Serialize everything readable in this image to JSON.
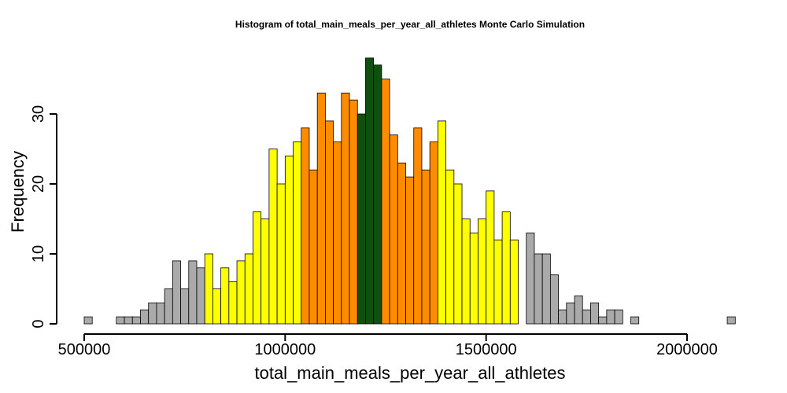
{
  "chart_data": {
    "type": "bar",
    "title": "Histogram of  total_main_meals_per_year_all_athletes  Monte Carlo Simulation",
    "xlabel": "total_main_meals_per_year_all_athletes",
    "ylabel": "Frequency",
    "bin_start": 500000,
    "bin_width": 20000,
    "xlim": [
      500000,
      2120000
    ],
    "ylim": [
      0,
      38
    ],
    "x_ticks": [
      500000,
      1000000,
      1500000,
      2000000
    ],
    "x_tick_labels": [
      "500000",
      "1000000",
      "1500000",
      "2000000"
    ],
    "y_ticks": [
      0,
      10,
      20,
      30
    ],
    "y_tick_labels": [
      "0",
      "10",
      "20",
      "30"
    ],
    "grid": false,
    "legend": "none",
    "series": [
      {
        "values": [
          1,
          0,
          0,
          0,
          1,
          1,
          1,
          2,
          3,
          3,
          5,
          9,
          5,
          9,
          8,
          10,
          5,
          8,
          6,
          9,
          10,
          16,
          15,
          25,
          20,
          24,
          26,
          28,
          22,
          33,
          29,
          26,
          33,
          32,
          30,
          38,
          37,
          35,
          27,
          23,
          21,
          28,
          22,
          26,
          29,
          22,
          20,
          15,
          13,
          15,
          19,
          12,
          16,
          12,
          0,
          13,
          10,
          10,
          7,
          2,
          3,
          4,
          2,
          3,
          1,
          2,
          2,
          0,
          1,
          0,
          0,
          0,
          0,
          0,
          0,
          0,
          0,
          0,
          0,
          0,
          1
        ]
      }
    ],
    "bar_colors": [
      "#aaaaaa",
      "#aaaaaa",
      "#aaaaaa",
      "#aaaaaa",
      "#aaaaaa",
      "#aaaaaa",
      "#aaaaaa",
      "#aaaaaa",
      "#aaaaaa",
      "#aaaaaa",
      "#aaaaaa",
      "#aaaaaa",
      "#aaaaaa",
      "#aaaaaa",
      "#aaaaaa",
      "#ffff00",
      "#ffff00",
      "#ffff00",
      "#ffff00",
      "#ffff00",
      "#ffff00",
      "#ffff00",
      "#ffff00",
      "#ffff00",
      "#ffff00",
      "#ffff00",
      "#ffff00",
      "#ff8c00",
      "#ff8c00",
      "#ff8c00",
      "#ff8c00",
      "#ff8c00",
      "#ff8c00",
      "#ff8c00",
      "#0f4f0f",
      "#0f4f0f",
      "#0f4f0f",
      "#ff8c00",
      "#ff8c00",
      "#ff8c00",
      "#ff8c00",
      "#ff8c00",
      "#ff8c00",
      "#ff8c00",
      "#ffff00",
      "#ffff00",
      "#ffff00",
      "#ffff00",
      "#ffff00",
      "#ffff00",
      "#ffff00",
      "#ffff00",
      "#ffff00",
      "#ffff00",
      "#ffff00",
      "#aaaaaa",
      "#aaaaaa",
      "#aaaaaa",
      "#aaaaaa",
      "#aaaaaa",
      "#aaaaaa",
      "#aaaaaa",
      "#aaaaaa",
      "#aaaaaa",
      "#aaaaaa",
      "#aaaaaa",
      "#aaaaaa",
      "#aaaaaa",
      "#aaaaaa",
      "#aaaaaa",
      "#aaaaaa",
      "#aaaaaa",
      "#aaaaaa",
      "#aaaaaa",
      "#aaaaaa",
      "#aaaaaa",
      "#aaaaaa",
      "#aaaaaa",
      "#aaaaaa",
      "#aaaaaa",
      "#aaaaaa"
    ]
  }
}
